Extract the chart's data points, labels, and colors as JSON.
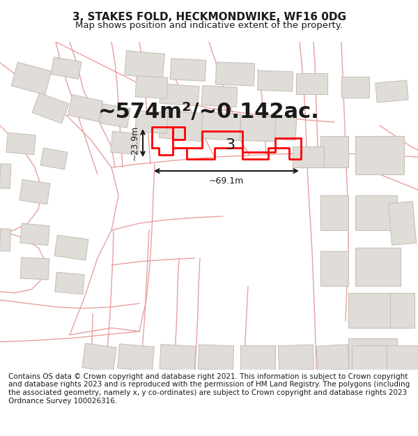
{
  "title": "3, STAKES FOLD, HECKMONDWIKE, WF16 0DG",
  "subtitle": "Map shows position and indicative extent of the property.",
  "area_text": "~574m²/~0.142ac.",
  "dim_h": "~69.1m",
  "dim_v": "~23.9m",
  "property_label": "3",
  "footer": "Contains OS data © Crown copyright and database right 2021. This information is subject to Crown copyright and database rights 2023 and is reproduced with the permission of HM Land Registry. The polygons (including the associated geometry, namely x, y co-ordinates) are subject to Crown copyright and database rights 2023 Ordnance Survey 100026316.",
  "bg_color": "#f0eeeb",
  "map_bg": "#f5f3f0",
  "street_color": "#e8a0a0",
  "building_color": "#e8e8e8",
  "building_edge": "#d0c8c0",
  "property_color": "#ff0000",
  "dim_color": "#1a1a1a",
  "title_fontsize": 11,
  "subtitle_fontsize": 9.5,
  "area_fontsize": 22,
  "footer_fontsize": 7.5
}
